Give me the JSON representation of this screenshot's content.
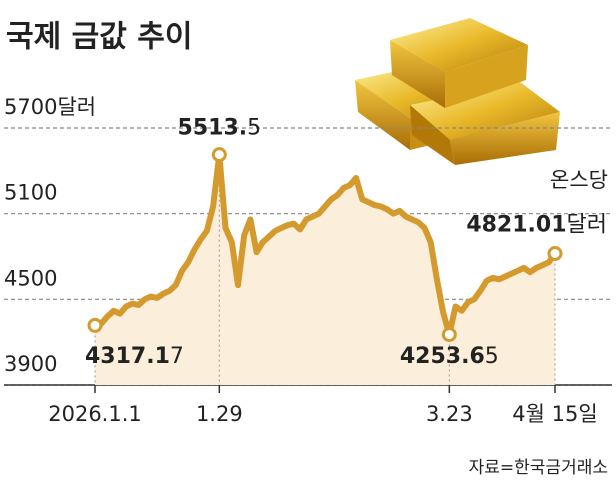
{
  "chart_data": {
    "type": "line",
    "title": "국제 금값 추이",
    "source": "자료=한국금거래소",
    "annotations": [
      "온스당"
    ],
    "categories": [
      "2026.1.1",
      null,
      null,
      null,
      null,
      null,
      null,
      null,
      null,
      null,
      null,
      null,
      null,
      null,
      null,
      null,
      null,
      null,
      null,
      null,
      "1.29",
      null,
      null,
      null,
      null,
      null,
      null,
      null,
      null,
      null,
      null,
      null,
      null,
      null,
      null,
      null,
      null,
      null,
      null,
      null,
      null,
      null,
      null,
      null,
      null,
      null,
      null,
      null,
      null,
      null,
      null,
      null,
      null,
      null,
      null,
      null,
      null,
      "3.23",
      null,
      null,
      null,
      null,
      null,
      null,
      null,
      null,
      null,
      null,
      null,
      null,
      null,
      null,
      null,
      null,
      "4월 15일"
    ],
    "series": [
      {
        "name": "금값",
        "color": "#d49a2e",
        "fill": "#fbeedb",
        "values": [
          4317.17,
          4330,
          4380,
          4420,
          4400,
          4450,
          4470,
          4460,
          4500,
          4520,
          4510,
          4540,
          4560,
          4600,
          4700,
          4760,
          4850,
          4920,
          4980,
          5150,
          5513.5,
          5000,
          4900,
          4600,
          4950,
          5060,
          4830,
          4900,
          4940,
          4980,
          5000,
          5020,
          5030,
          4990,
          5060,
          5080,
          5100,
          5150,
          5200,
          5230,
          5280,
          5300,
          5350,
          5200,
          5180,
          5160,
          5150,
          5130,
          5100,
          5120,
          5080,
          5060,
          5040,
          5000,
          4900,
          4640,
          4410,
          4253.65,
          4450,
          4420,
          4480,
          4500,
          4560,
          4630,
          4650,
          4640,
          4660,
          4680,
          4700,
          4720,
          4690,
          4720,
          4740,
          4760,
          4821.01
        ],
        "value_labels": [
          "4317.17",
          null,
          null,
          null,
          null,
          null,
          null,
          null,
          null,
          null,
          null,
          null,
          null,
          null,
          null,
          null,
          null,
          null,
          null,
          null,
          "5513.5",
          null,
          null,
          null,
          null,
          null,
          null,
          null,
          null,
          null,
          null,
          null,
          null,
          null,
          null,
          null,
          null,
          null,
          null,
          null,
          null,
          null,
          null,
          null,
          null,
          null,
          null,
          null,
          null,
          null,
          null,
          null,
          null,
          null,
          null,
          null,
          null,
          "4253.65",
          null,
          null,
          null,
          null,
          null,
          null,
          null,
          null,
          null,
          null,
          null,
          null,
          null,
          null,
          null,
          null,
          "4821.01달러"
        ]
      }
    ],
    "ylim": [
      3900,
      5700
    ],
    "yticks": [
      {
        "value": 5700,
        "label": "5700달러"
      },
      5100,
      4500,
      3900
    ],
    "grid": true
  }
}
